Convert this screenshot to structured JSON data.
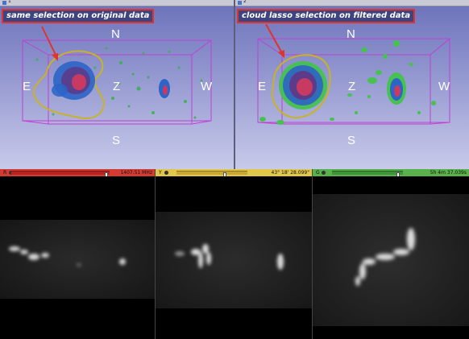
{
  "views3d": {
    "left": {
      "number": "1",
      "annotation": "same selection on original data",
      "orientation": {
        "north": "N",
        "south": "S",
        "east": "E",
        "west": "W",
        "center": "Z"
      }
    },
    "right": {
      "number": "2",
      "annotation": "cloud lasso selection on filtered data",
      "orientation": {
        "north": "N",
        "south": "S",
        "east": "E",
        "west": "W",
        "center": "Z"
      }
    }
  },
  "slices": {
    "red": {
      "letter": "R",
      "value": "1407.51 MHz",
      "color": "#d33b33",
      "slider_fraction": 0.98
    },
    "yellow": {
      "letter": "Y",
      "value": "43° 18' 28.099\"",
      "color": "#e0c64a",
      "slider_fraction": 0.69
    },
    "green": {
      "letter": "G",
      "value": "5h 4m 37.039s",
      "color": "#58b14a",
      "slider_fraction": 0.95
    }
  },
  "icons": {
    "view_pin": "pin-icon",
    "view_link": "link-icon",
    "slice_visibility": "eye-icon"
  }
}
